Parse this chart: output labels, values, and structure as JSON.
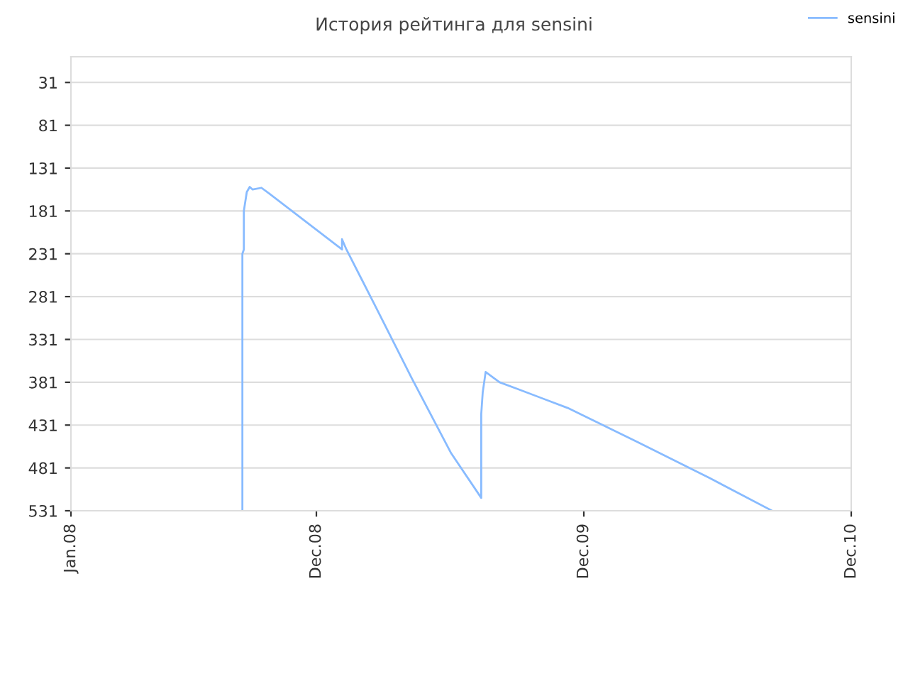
{
  "chart_data": {
    "type": "line",
    "title": "История рейтинга для sensini",
    "x": [
      "2008-08-22",
      "2008-08-22",
      "2008-08-24",
      "2008-08-24",
      "2008-08-28",
      "2008-09-01",
      "2008-09-05",
      "2008-09-17",
      "2008-09-28",
      "2009-01-05",
      "2009-01-05",
      "2009-01-11",
      "2009-02-20",
      "2009-04-10",
      "2009-06-03",
      "2009-07-14",
      "2009-07-14",
      "2009-07-16",
      "2009-07-20",
      "2009-08-08",
      "2009-09-02",
      "2009-11-09",
      "2010-02-13",
      "2010-05-22",
      "2010-08-15"
    ],
    "series": [
      {
        "name": "sensini",
        "color": "#88bbff",
        "values": [
          531,
          231,
          226,
          181,
          159,
          153,
          156,
          154,
          161,
          226,
          214,
          226,
          293,
          376,
          464,
          516,
          418,
          393,
          369,
          381,
          389,
          411,
          451,
          493,
          531
        ]
      }
    ],
    "xlim": [
      "2008-01-01",
      "2010-12-01"
    ],
    "xticks": [
      {
        "value": "2008-01-01",
        "label": "Jan.08"
      },
      {
        "value": "2008-12-01",
        "label": "Dec.08"
      },
      {
        "value": "2009-12-01",
        "label": "Dec.09"
      },
      {
        "value": "2010-12-01",
        "label": "Dec.10"
      }
    ],
    "ylim": [
      531,
      1
    ],
    "yticks": [
      31,
      81,
      131,
      181,
      231,
      281,
      331,
      381,
      431,
      481,
      531
    ],
    "grid": "y",
    "legend": "top right",
    "marker": "none",
    "line_style": "solid"
  }
}
